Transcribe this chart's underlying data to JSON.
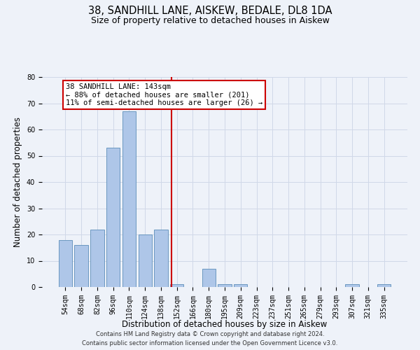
{
  "title": "38, SANDHILL LANE, AISKEW, BEDALE, DL8 1DA",
  "subtitle": "Size of property relative to detached houses in Aiskew",
  "xlabel": "Distribution of detached houses by size in Aiskew",
  "ylabel": "Number of detached properties",
  "bar_labels": [
    "54sqm",
    "68sqm",
    "82sqm",
    "96sqm",
    "110sqm",
    "124sqm",
    "138sqm",
    "152sqm",
    "166sqm",
    "180sqm",
    "195sqm",
    "209sqm",
    "223sqm",
    "237sqm",
    "251sqm",
    "265sqm",
    "279sqm",
    "293sqm",
    "307sqm",
    "321sqm",
    "335sqm"
  ],
  "bar_values": [
    18,
    16,
    22,
    53,
    67,
    20,
    22,
    1,
    0,
    7,
    1,
    1,
    0,
    0,
    0,
    0,
    0,
    0,
    1,
    0,
    1
  ],
  "bar_color": "#aec6e8",
  "bar_edge_color": "#5b8db8",
  "ylim": [
    0,
    80
  ],
  "yticks": [
    0,
    10,
    20,
    30,
    40,
    50,
    60,
    70,
    80
  ],
  "property_line_label": "38 SANDHILL LANE: 143sqm",
  "annotation_line1": "← 88% of detached houses are smaller (201)",
  "annotation_line2": "11% of semi-detached houses are larger (26) →",
  "box_color": "#ffffff",
  "box_edge_color": "#cc0000",
  "vline_color": "#cc0000",
  "footer1": "Contains HM Land Registry data © Crown copyright and database right 2024.",
  "footer2": "Contains public sector information licensed under the Open Government Licence v3.0.",
  "bg_color": "#eef2f9",
  "grid_color": "#d0d8e8",
  "title_fontsize": 10.5,
  "subtitle_fontsize": 9,
  "axis_label_fontsize": 8.5,
  "tick_fontsize": 7,
  "annot_fontsize": 7.5,
  "footer_fontsize": 6
}
